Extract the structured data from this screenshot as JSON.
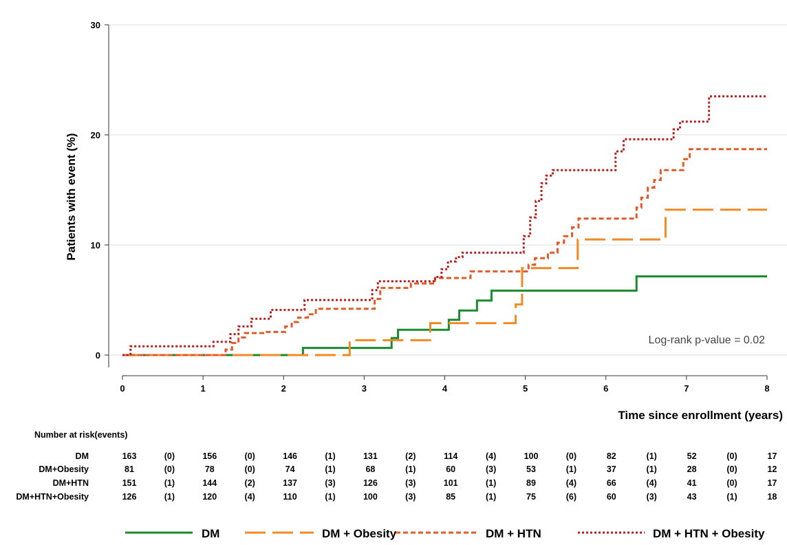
{
  "chart_data": {
    "type": "line",
    "xlabel": "Time since enrollment (years)",
    "ylabel": "Patients with event (%)",
    "xlim": [
      0,
      8
    ],
    "ylim": [
      0,
      30
    ],
    "x_ticks": [
      "0",
      "1",
      "2",
      "3",
      "4",
      "5",
      "6",
      "7",
      "8"
    ],
    "y_ticks": [
      "0",
      "10",
      "20",
      "30"
    ],
    "grid": "horizontal",
    "legend_position": "bottom",
    "annotation": "Log-rank p-value = 0.02",
    "series": [
      {
        "name": "DM",
        "color": "#1a8a2e",
        "style": "solid",
        "x": [
          0,
          2.24,
          3.34,
          3.42,
          4.05,
          4.18,
          4.4,
          4.58,
          6.38,
          8.0
        ],
        "y": [
          0,
          0.65,
          1.55,
          2.3,
          3.2,
          4.05,
          4.95,
          5.85,
          7.15,
          7.15
        ]
      },
      {
        "name": "DM + Obesity",
        "color": "#f08a24",
        "style": "dashed",
        "x": [
          0,
          2.82,
          3.82,
          3.94,
          4.88,
          4.96,
          5.65,
          6.74,
          8.0
        ],
        "y": [
          0,
          1.35,
          2.9,
          2.9,
          4.6,
          7.9,
          10.5,
          13.2,
          13.2
        ]
      },
      {
        "name": "DM + HTN",
        "color": "#e05a2a",
        "style": "short-dashed",
        "x": [
          0,
          1.28,
          1.36,
          1.44,
          1.52,
          1.76,
          2.02,
          2.1,
          2.18,
          2.3,
          2.4,
          3.13,
          3.2,
          3.58,
          3.88,
          4.32,
          5.04,
          5.12,
          5.28,
          5.4,
          5.48,
          5.58,
          5.66,
          6.38,
          6.44,
          6.52,
          6.6,
          6.68,
          6.96,
          7.04,
          7.12,
          8.0
        ],
        "y": [
          0,
          0.5,
          1.1,
          1.6,
          2.0,
          2.1,
          2.6,
          3.0,
          3.4,
          3.7,
          4.2,
          5.1,
          6.1,
          6.5,
          7.0,
          7.6,
          8.2,
          8.8,
          9.3,
          10.2,
          10.8,
          11.6,
          12.4,
          13.4,
          14.3,
          15.2,
          15.9,
          16.8,
          17.8,
          18.7,
          18.7,
          18.7
        ]
      },
      {
        "name": "DM + HTN + Obesity",
        "color": "#b51e1e",
        "style": "dotted",
        "x": [
          0,
          0.1,
          1.13,
          1.34,
          1.44,
          1.6,
          1.84,
          2.26,
          3.1,
          3.17,
          3.88,
          3.96,
          4.04,
          4.14,
          4.22,
          4.28,
          4.34,
          4.98,
          5.06,
          5.13,
          5.2,
          5.26,
          5.34,
          6.12,
          6.22,
          6.84,
          6.92,
          7.28,
          8.0
        ],
        "y": [
          0,
          0.8,
          1.2,
          1.9,
          2.6,
          3.3,
          4.1,
          5.0,
          5.9,
          6.7,
          7.1,
          7.8,
          8.5,
          8.9,
          9.3,
          9.3,
          9.3,
          10.8,
          12.5,
          14.0,
          15.6,
          16.3,
          16.8,
          18.5,
          19.6,
          20.5,
          21.2,
          23.5,
          23.5
        ]
      }
    ],
    "risk_table": {
      "title": "Number at risk(events)",
      "rows": [
        {
          "label": "DM",
          "values": [
            "163",
            "(0)",
            "156",
            "(0)",
            "146",
            "(1)",
            "131",
            "(2)",
            "114",
            "(4)",
            "100",
            "(0)",
            "82",
            "(1)",
            "52",
            "(0)",
            "17"
          ]
        },
        {
          "label": "DM+Obesity",
          "values": [
            "81",
            "(0)",
            "78",
            "(0)",
            "74",
            "(1)",
            "68",
            "(1)",
            "60",
            "(3)",
            "53",
            "(1)",
            "37",
            "(1)",
            "28",
            "(0)",
            "12"
          ]
        },
        {
          "label": "DM+HTN",
          "values": [
            "151",
            "(1)",
            "144",
            "(2)",
            "137",
            "(3)",
            "126",
            "(3)",
            "101",
            "(1)",
            "89",
            "(4)",
            "66",
            "(4)",
            "41",
            "(0)",
            "17"
          ]
        },
        {
          "label": "DM+HTN+Obesity",
          "values": [
            "126",
            "(1)",
            "120",
            "(4)",
            "110",
            "(1)",
            "100",
            "(3)",
            "85",
            "(1)",
            "75",
            "(6)",
            "60",
            "(3)",
            "43",
            "(1)",
            "18"
          ]
        }
      ]
    }
  }
}
